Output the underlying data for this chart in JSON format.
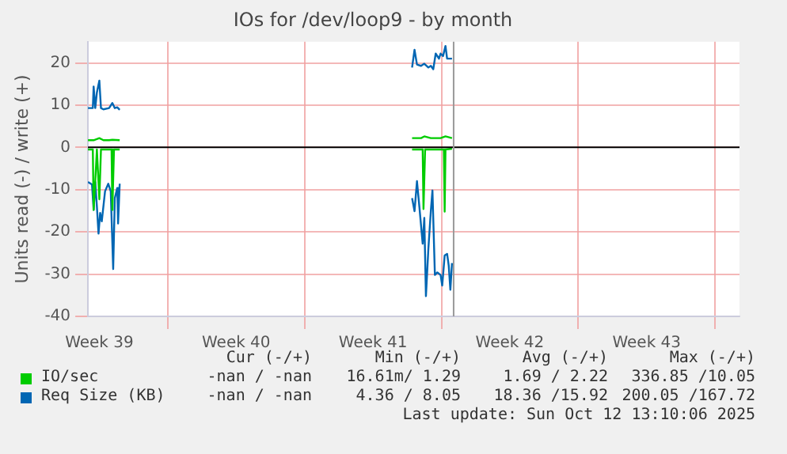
{
  "chart_data": {
    "type": "line",
    "title": "IOs for /dev/loop9 - by month",
    "ylabel": "Units read (-) / write (+)",
    "xlim": [
      "2025-09-24T22:00",
      "2025-10-28T06:00"
    ],
    "xticks": [
      {
        "value": "2025-09-25T12:00",
        "label": "Week 39"
      },
      {
        "value": "2025-09-29",
        "label": null
      },
      {
        "value": "2025-10-02T12:00",
        "label": "Week 40"
      },
      {
        "value": "2025-10-06",
        "label": null
      },
      {
        "value": "2025-10-09T12:00",
        "label": "Week 41"
      },
      {
        "value": "2025-10-13",
        "label": null
      },
      {
        "value": "2025-10-16T12:00",
        "label": "Week 42"
      },
      {
        "value": "2025-10-20",
        "label": null
      },
      {
        "value": "2025-10-23T12:00",
        "label": "Week 43"
      },
      {
        "value": "2025-10-27",
        "label": null
      }
    ],
    "ylim": [
      -40,
      25
    ],
    "yticks": [
      -40,
      -30,
      -20,
      -10,
      0,
      10,
      20
    ],
    "grid": true,
    "legend": "bottom",
    "marker": "none",
    "line_style": "solid",
    "series": [
      {
        "name": "IO/sec",
        "color": "#00cc00",
        "x": [
          "2025-09-24T22:00",
          "2025-09-25T05:00",
          "2025-09-25T12:00",
          "2025-09-25T17:00",
          "2025-09-26T00:00",
          "2025-09-26T04:00",
          "2025-09-26T13:00",
          "2025-10-05",
          "2025-10-11T12:00",
          "2025-10-11T23:00",
          "2025-10-12T03:00",
          "2025-10-12T11:00",
          "2025-10-12T23:00",
          "2025-10-13T05:00",
          "2025-10-13T13:00"
        ],
        "values": [
          1.7,
          1.7,
          2.2,
          1.7,
          1.7,
          1.8,
          1.7,
          null,
          2.2,
          2.2,
          2.6,
          2.2,
          2.2,
          2.6,
          2.2
        ]
      },
      {
        "color": "#00cc00",
        "x": [
          "2025-09-24T22:00",
          "2025-09-25T04:00",
          "2025-09-25T05:00",
          "2025-09-25T07:00",
          "2025-09-25T09:00",
          "2025-09-25T12:00",
          "2025-09-25T14:00",
          "2025-09-26T00:00",
          "2025-09-26T03:00",
          "2025-09-26T04:00",
          "2025-09-26T06:00",
          "2025-09-26T13:00",
          "2025-10-05",
          "2025-10-11T12:00",
          "2025-10-12T01:00",
          "2025-10-12T02:00",
          "2025-10-12T03:00",
          "2025-10-12T04:00",
          "2025-10-13T03:00",
          "2025-10-13T04:00",
          "2025-10-13T05:00",
          "2025-10-13T13:00"
        ],
        "values": [
          -0.5,
          -0.5,
          -14.8,
          -8,
          -0.5,
          -12.3,
          -0.5,
          -0.5,
          -0.5,
          -14.8,
          -0.5,
          -0.5,
          null,
          -0.5,
          -0.5,
          -14.6,
          -14.6,
          -0.5,
          -0.5,
          -15.2,
          -0.5,
          -0.3
        ]
      },
      {
        "name": "Req Size (KB)",
        "color": "#0066b3",
        "x": [
          "2025-09-24T22:00",
          "2025-09-25T04:00",
          "2025-09-25T05:00",
          "2025-09-25T07:00",
          "2025-09-25T09:00",
          "2025-09-25T12:00",
          "2025-09-25T14:00",
          "2025-09-25T17:00",
          "2025-09-26T00:00",
          "2025-09-26T04:00",
          "2025-09-26T07:00",
          "2025-09-26T10:00",
          "2025-09-26T13:00",
          "2025-10-05",
          "2025-10-11T12:00",
          "2025-10-11T15:00",
          "2025-10-11T18:00",
          "2025-10-11T23:00",
          "2025-10-12T03:00",
          "2025-10-12T08:00",
          "2025-10-12T11:00",
          "2025-10-12T14:00",
          "2025-10-12T17:00",
          "2025-10-12T21:00",
          "2025-10-12T23:00",
          "2025-10-13T02:00",
          "2025-10-13T05:00",
          "2025-10-13T07:00",
          "2025-10-13T13:00"
        ],
        "values": [
          9.3,
          9.3,
          14.4,
          9.3,
          13,
          15.8,
          9.3,
          9.0,
          9.3,
          10.5,
          9.3,
          9.5,
          8.9,
          null,
          18.9,
          23.1,
          19.6,
          19.3,
          19.8,
          18.9,
          19.3,
          18.5,
          22.2,
          21,
          22.2,
          21.6,
          24,
          21,
          21
        ]
      },
      {
        "color": "#0066b3",
        "x": [
          "2025-09-24T22:00",
          "2025-09-25T03:00",
          "2025-09-25T05:00",
          "2025-09-25T07:00",
          "2025-09-25T09:00",
          "2025-09-25T11:00",
          "2025-09-25T13:00",
          "2025-09-25T15:00",
          "2025-09-25T19:00",
          "2025-09-25T23:00",
          "2025-09-26T02:00",
          "2025-09-26T05:00",
          "2025-09-26T07:00",
          "2025-09-26T10:00",
          "2025-09-26T11:00",
          "2025-09-26T13:00",
          "2025-10-05",
          "2025-10-11T12:00",
          "2025-10-11T15:00",
          "2025-10-11T18:00",
          "2025-10-11T21:00",
          "2025-10-12T01:00",
          "2025-10-12T03:00",
          "2025-10-12T05:00",
          "2025-10-12T08:00",
          "2025-10-12T11:00",
          "2025-10-12T13:00",
          "2025-10-12T16:00",
          "2025-10-12T19:00",
          "2025-10-12T23:00",
          "2025-10-13T01:00",
          "2025-10-13T04:00",
          "2025-10-13T07:00",
          "2025-10-13T09:00",
          "2025-10-13T11:00",
          "2025-10-13T13:00"
        ],
        "values": [
          -8.2,
          -8.8,
          -14.8,
          -8.2,
          -14,
          -20.4,
          -15.5,
          -17.5,
          -10.4,
          -8.6,
          -10.4,
          -28.8,
          -12,
          -9.6,
          -18,
          -8.6,
          null,
          -12,
          -15.1,
          -8,
          -14.2,
          -22.8,
          -16.7,
          -35.2,
          -24,
          -15.1,
          -10.2,
          -30.2,
          -29.6,
          -30.2,
          -32.7,
          -25.6,
          -25.2,
          -28,
          -33.7,
          -27.4
        ]
      }
    ],
    "ref_lines": [
      {
        "axis": "y",
        "value": 0,
        "color": "#000000"
      },
      {
        "axis": "x",
        "value": "2025-10-13T15:00",
        "color": "#999999"
      }
    ],
    "annotations": [
      "Cur (-/+)",
      "Min (-/+)",
      "Avg (-/+)",
      "Max (-/+)",
      "-nan / -nan",
      "16.61m/ 1.29",
      "1.69 / 2.22",
      "336.85 /10.05",
      "-nan / -nan",
      "4.36 / 8.05",
      "18.36 /15.92",
      "200.05 /167.72",
      "Last update: Sun Oct 12 13:10:06 2025"
    ]
  }
}
